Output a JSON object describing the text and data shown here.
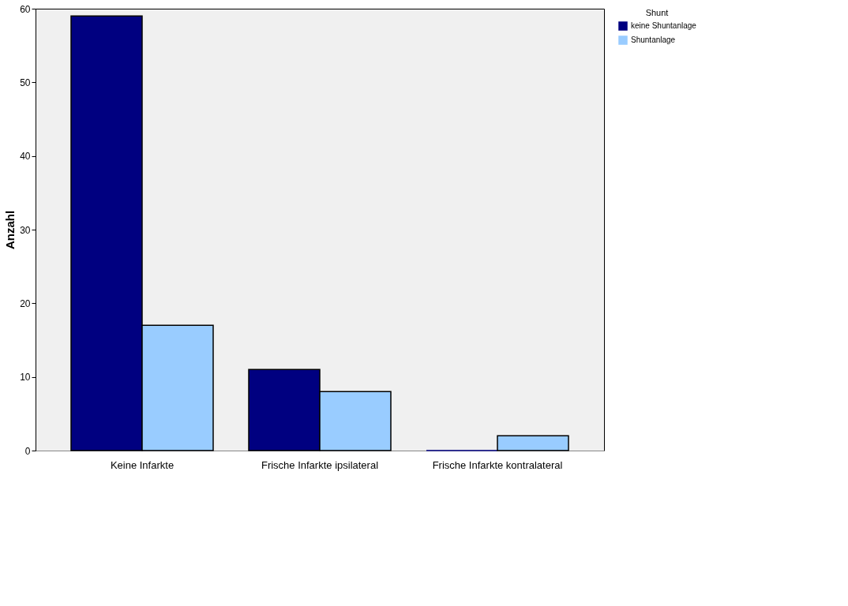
{
  "chart_data": {
    "type": "bar",
    "ylabel": "Anzahl",
    "legend_title": "Shunt",
    "categories": [
      "Keine Infarkte",
      "Frische Infarkte ipsilateral",
      "Frische Infarkte kontralateral"
    ],
    "series": [
      {
        "name": "keine Shuntanlage",
        "color": "#000080",
        "values": [
          59,
          11,
          0
        ]
      },
      {
        "name": "Shuntanlage",
        "color": "#99ccff",
        "values": [
          17,
          8,
          2
        ]
      }
    ],
    "ylim": [
      0,
      60
    ],
    "yticks": [
      0,
      10,
      20,
      30,
      40,
      50,
      60
    ],
    "grid": false,
    "legend": "top right"
  }
}
